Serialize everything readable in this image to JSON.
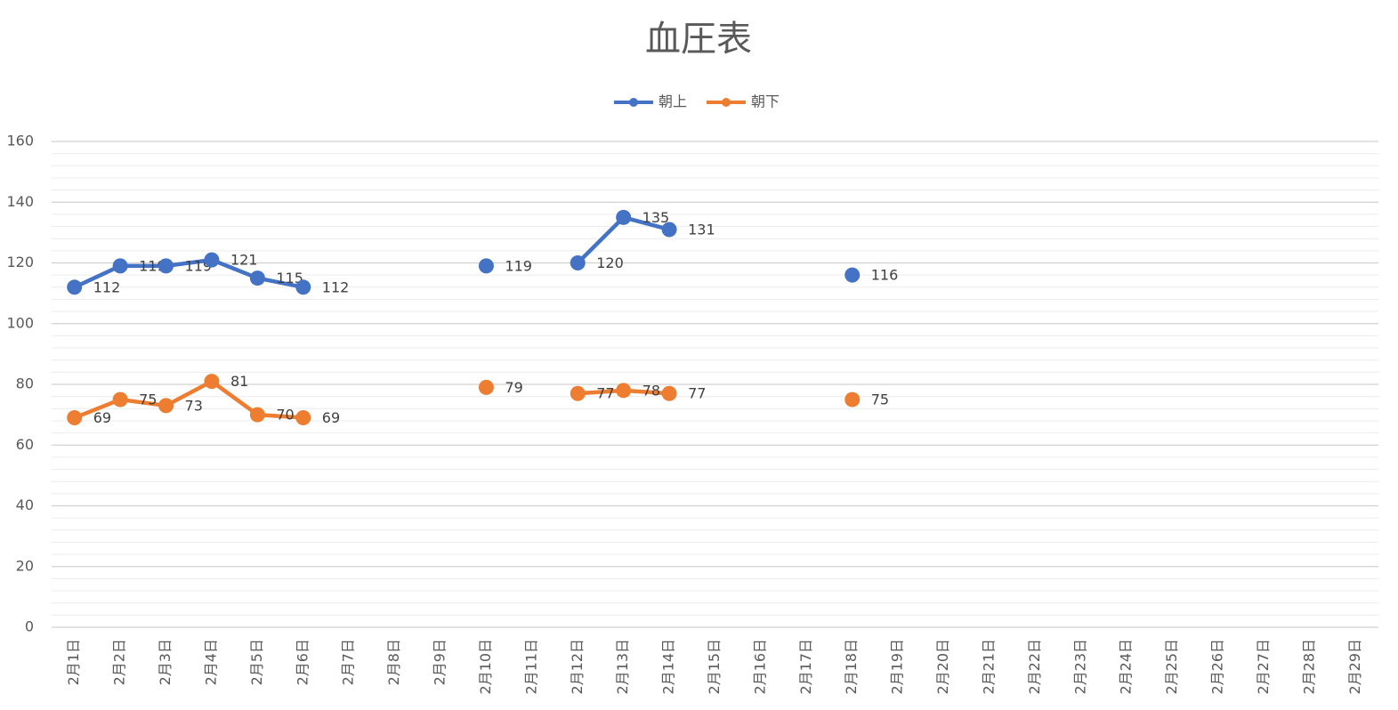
{
  "chart_data": {
    "type": "line",
    "title": "血圧表",
    "categories": [
      "2月1日",
      "2月2日",
      "2月3日",
      "2月4日",
      "2月5日",
      "2月6日",
      "2月7日",
      "2月8日",
      "2月9日",
      "2月10日",
      "2月11日",
      "2月12日",
      "2月13日",
      "2月14日",
      "2月15日",
      "2月16日",
      "2月17日",
      "2月18日",
      "2月19日",
      "2月20日",
      "2月21日",
      "2月22日",
      "2月23日",
      "2月24日",
      "2月25日",
      "2月26日",
      "2月27日",
      "2月28日",
      "2月29日"
    ],
    "series": [
      {
        "name": "朝上",
        "color": "#4472c4",
        "values": [
          112,
          119,
          119,
          121,
          115,
          112,
          null,
          null,
          null,
          119,
          null,
          120,
          135,
          131,
          null,
          null,
          null,
          116,
          null,
          null,
          null,
          null,
          null,
          null,
          null,
          null,
          null,
          null,
          null
        ]
      },
      {
        "name": "朝下",
        "color": "#ed7d31",
        "values": [
          69,
          75,
          73,
          81,
          70,
          69,
          null,
          null,
          null,
          79,
          null,
          77,
          78,
          77,
          null,
          null,
          null,
          75,
          null,
          null,
          null,
          null,
          null,
          null,
          null,
          null,
          null,
          null,
          null
        ]
      }
    ],
    "ylim": [
      0,
      160
    ],
    "yticks": [
      0,
      20,
      40,
      60,
      80,
      100,
      120,
      140,
      160
    ],
    "grid": true,
    "legend": "top"
  }
}
